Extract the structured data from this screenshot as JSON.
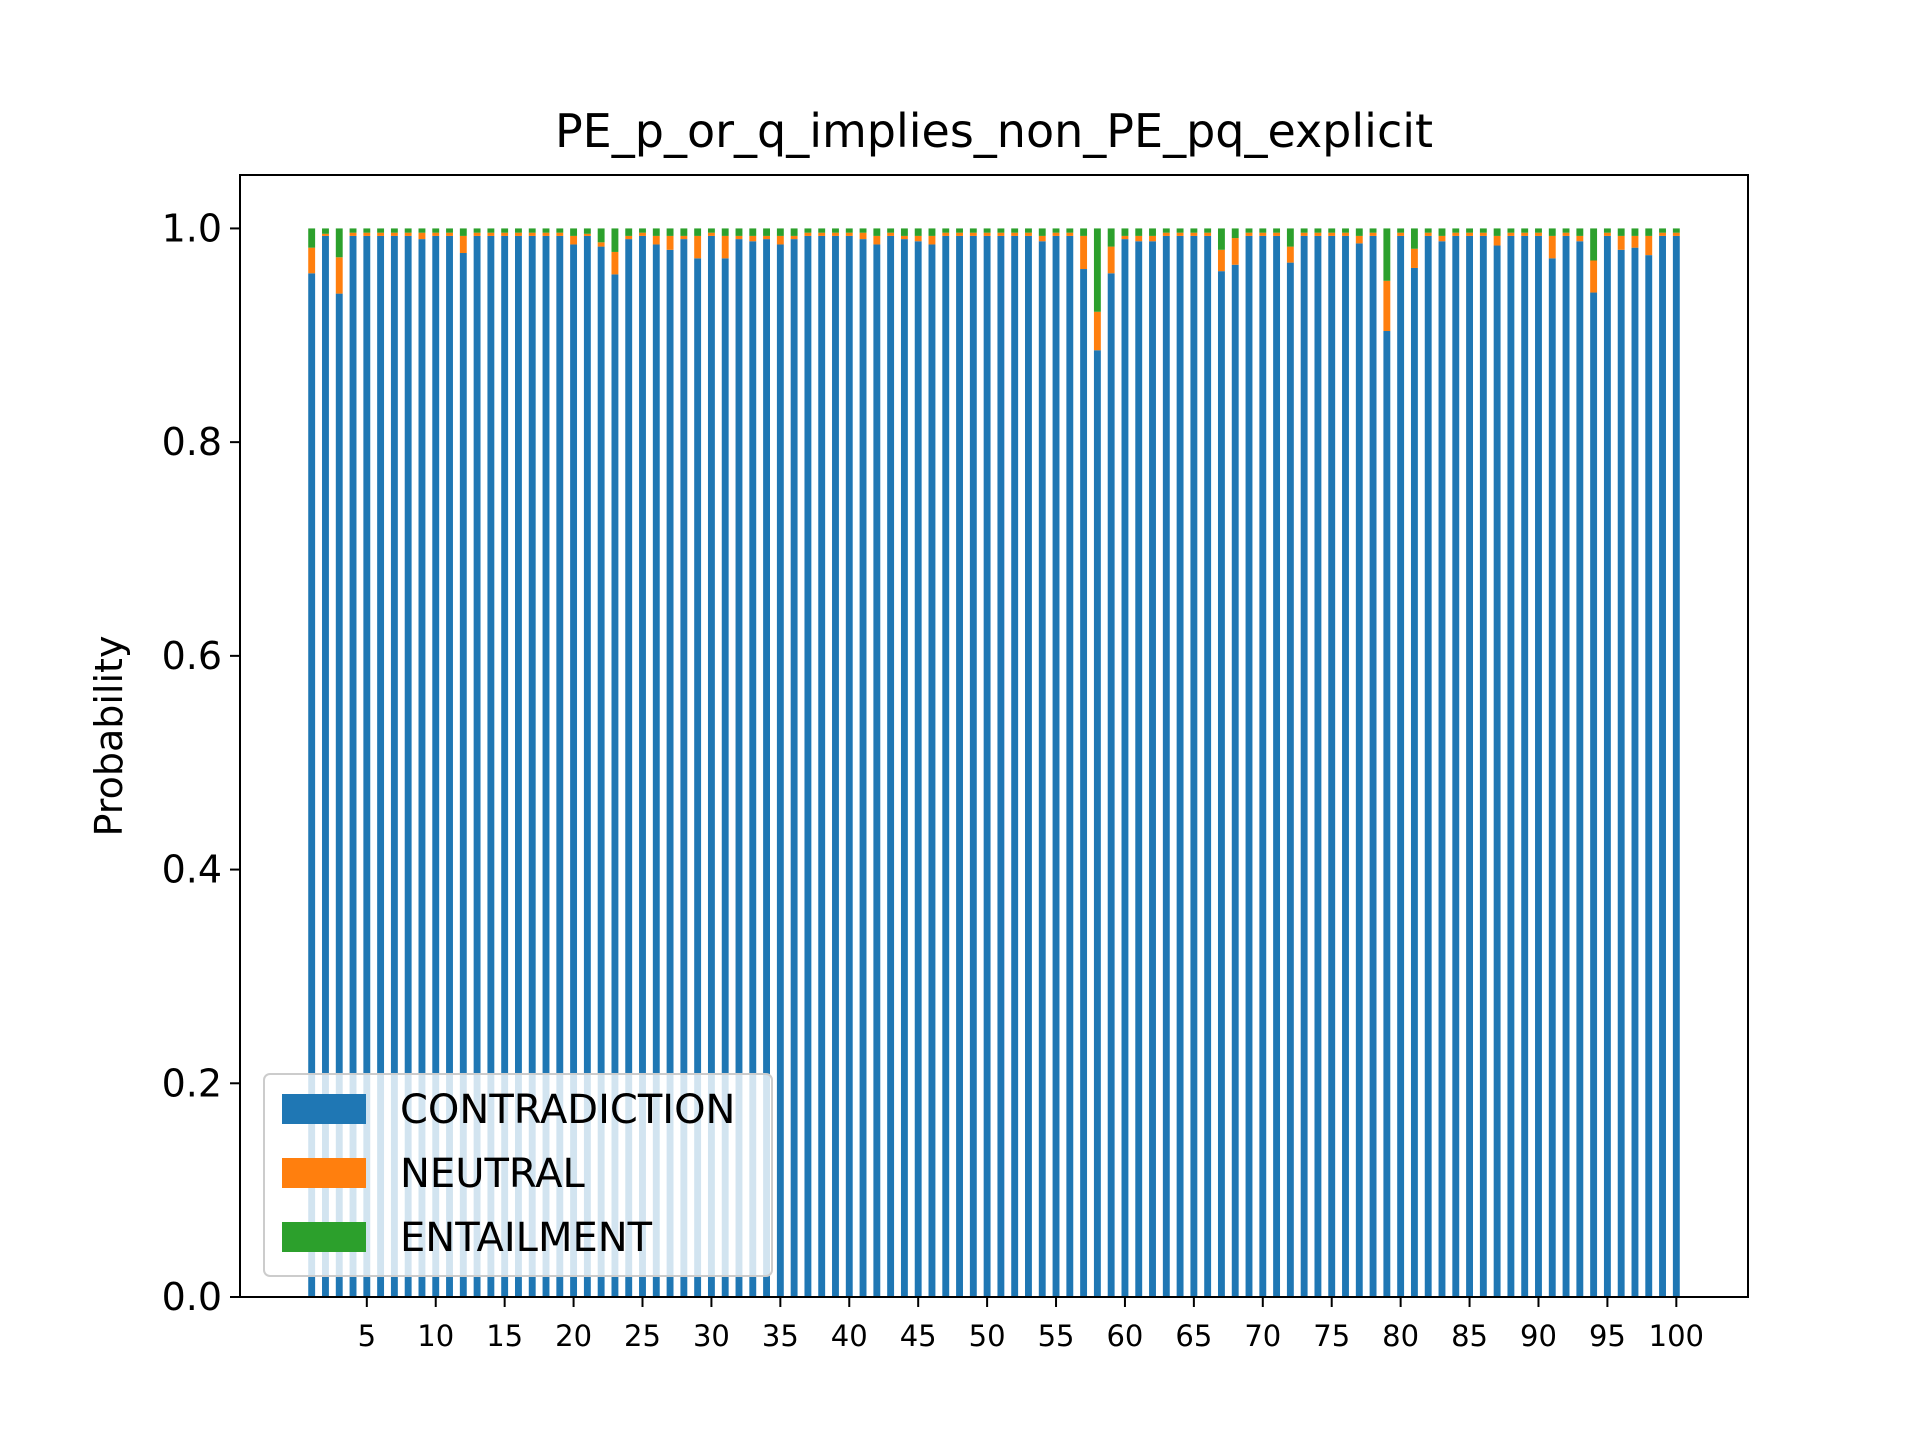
{
  "colors": {
    "contradiction": "#1f77b4",
    "neutral": "#ff7f0e",
    "entailment": "#2ca02c",
    "axes": "#000000",
    "background": "#ffffff"
  },
  "chart_data": {
    "type": "bar",
    "stacked": true,
    "title": "PE_p_or_q_implies_non_PE_pq_explicit",
    "xlabel": "",
    "ylabel": "Probability",
    "ylim": [
      0,
      1.05
    ],
    "xlim": [
      -4.2,
      105.2
    ],
    "yticks": [
      0.0,
      0.2,
      0.4,
      0.6,
      0.8,
      1.0
    ],
    "ytick_labels": [
      "0.0",
      "0.2",
      "0.4",
      "0.6",
      "0.8",
      "1.0"
    ],
    "xticks": [
      5,
      10,
      15,
      20,
      25,
      30,
      35,
      40,
      45,
      50,
      55,
      60,
      65,
      70,
      75,
      80,
      85,
      90,
      95,
      100
    ],
    "xtick_labels": [
      "5",
      "10",
      "15",
      "20",
      "25",
      "30",
      "35",
      "40",
      "45",
      "50",
      "55",
      "60",
      "65",
      "70",
      "75",
      "80",
      "85",
      "90",
      "95",
      "100"
    ],
    "grid": false,
    "legend": {
      "placement": "lower-left",
      "entries": [
        "CONTRADICTION",
        "NEUTRAL",
        "ENTAILMENT"
      ]
    },
    "x": [
      1,
      2,
      3,
      4,
      5,
      6,
      7,
      8,
      9,
      10,
      11,
      12,
      13,
      14,
      15,
      16,
      17,
      18,
      19,
      20,
      21,
      22,
      23,
      24,
      25,
      26,
      27,
      28,
      29,
      30,
      31,
      32,
      33,
      34,
      35,
      36,
      37,
      38,
      39,
      40,
      41,
      42,
      43,
      44,
      45,
      46,
      47,
      48,
      49,
      50,
      51,
      52,
      53,
      54,
      55,
      56,
      57,
      58,
      59,
      60,
      61,
      62,
      63,
      64,
      65,
      66,
      67,
      68,
      69,
      70,
      71,
      72,
      73,
      74,
      75,
      76,
      77,
      78,
      79,
      80,
      81,
      82,
      83,
      84,
      85,
      86,
      87,
      88,
      89,
      90,
      91,
      92,
      93,
      94,
      95,
      96,
      97,
      98,
      99,
      100
    ],
    "series": [
      {
        "name": "CONTRADICTION",
        "values": [
          0.958,
          0.993,
          0.939,
          0.993,
          0.993,
          0.993,
          0.993,
          0.993,
          0.99,
          0.993,
          0.993,
          0.977,
          0.993,
          0.993,
          0.993,
          0.993,
          0.993,
          0.993,
          0.993,
          0.985,
          0.993,
          0.983,
          0.957,
          0.99,
          0.993,
          0.985,
          0.98,
          0.99,
          0.972,
          0.993,
          0.972,
          0.99,
          0.988,
          0.99,
          0.985,
          0.99,
          0.993,
          0.993,
          0.993,
          0.993,
          0.99,
          0.985,
          0.993,
          0.99,
          0.988,
          0.985,
          0.993,
          0.993,
          0.993,
          0.993,
          0.993,
          0.993,
          0.993,
          0.988,
          0.993,
          0.993,
          0.962,
          0.886,
          0.958,
          0.99,
          0.988,
          0.988,
          0.993,
          0.993,
          0.993,
          0.993,
          0.96,
          0.966,
          0.993,
          0.993,
          0.993,
          0.968,
          0.993,
          0.993,
          0.993,
          0.993,
          0.986,
          0.993,
          0.904,
          0.993,
          0.963,
          0.993,
          0.988,
          0.993,
          0.993,
          0.993,
          0.984,
          0.993,
          0.993,
          0.993,
          0.972,
          0.993,
          0.988,
          0.94,
          0.993,
          0.98,
          0.982,
          0.975,
          0.993,
          0.993
        ]
      },
      {
        "name": "NEUTRAL",
        "values": [
          0.024,
          0.002,
          0.034,
          0.003,
          0.003,
          0.003,
          0.003,
          0.003,
          0.006,
          0.003,
          0.003,
          0.016,
          0.003,
          0.003,
          0.003,
          0.003,
          0.003,
          0.003,
          0.003,
          0.008,
          0.002,
          0.004,
          0.021,
          0.003,
          0.003,
          0.008,
          0.013,
          0.003,
          0.021,
          0.003,
          0.021,
          0.003,
          0.005,
          0.003,
          0.008,
          0.003,
          0.003,
          0.003,
          0.003,
          0.003,
          0.006,
          0.008,
          0.003,
          0.003,
          0.005,
          0.008,
          0.003,
          0.003,
          0.003,
          0.003,
          0.003,
          0.003,
          0.003,
          0.005,
          0.003,
          0.003,
          0.031,
          0.036,
          0.025,
          0.003,
          0.005,
          0.005,
          0.003,
          0.003,
          0.003,
          0.003,
          0.02,
          0.025,
          0.003,
          0.003,
          0.003,
          0.015,
          0.003,
          0.003,
          0.003,
          0.003,
          0.007,
          0.003,
          0.047,
          0.003,
          0.018,
          0.003,
          0.005,
          0.003,
          0.003,
          0.003,
          0.009,
          0.003,
          0.003,
          0.003,
          0.021,
          0.003,
          0.005,
          0.03,
          0.003,
          0.013,
          0.011,
          0.018,
          0.003,
          0.003
        ]
      },
      {
        "name": "ENTAILMENT",
        "values": [
          0.018,
          0.005,
          0.027,
          0.004,
          0.004,
          0.004,
          0.004,
          0.004,
          0.004,
          0.004,
          0.004,
          0.007,
          0.004,
          0.004,
          0.004,
          0.004,
          0.004,
          0.004,
          0.004,
          0.007,
          0.005,
          0.013,
          0.022,
          0.007,
          0.004,
          0.007,
          0.007,
          0.007,
          0.007,
          0.004,
          0.007,
          0.007,
          0.007,
          0.007,
          0.007,
          0.007,
          0.004,
          0.004,
          0.004,
          0.004,
          0.004,
          0.007,
          0.004,
          0.007,
          0.007,
          0.007,
          0.004,
          0.004,
          0.004,
          0.004,
          0.004,
          0.004,
          0.004,
          0.007,
          0.004,
          0.004,
          0.007,
          0.078,
          0.017,
          0.007,
          0.007,
          0.007,
          0.004,
          0.004,
          0.004,
          0.004,
          0.02,
          0.009,
          0.004,
          0.004,
          0.004,
          0.017,
          0.004,
          0.004,
          0.004,
          0.004,
          0.007,
          0.004,
          0.049,
          0.004,
          0.019,
          0.004,
          0.007,
          0.004,
          0.004,
          0.004,
          0.007,
          0.004,
          0.004,
          0.004,
          0.007,
          0.004,
          0.007,
          0.03,
          0.004,
          0.007,
          0.007,
          0.007,
          0.004,
          0.004
        ]
      }
    ]
  }
}
